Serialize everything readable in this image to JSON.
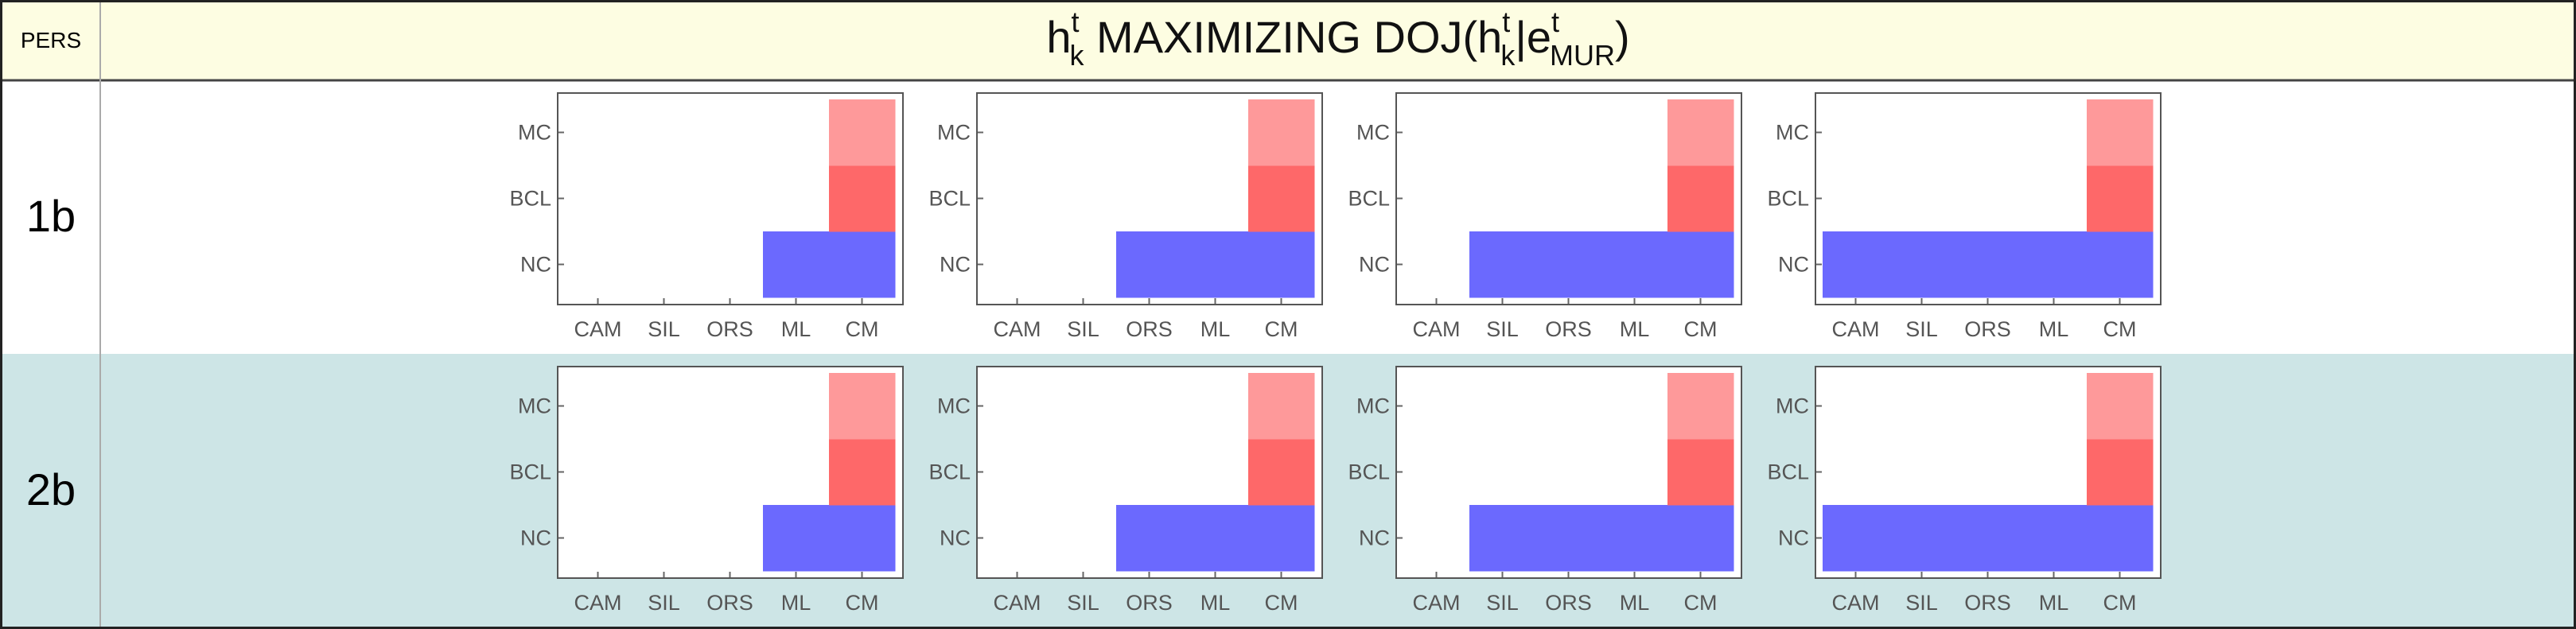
{
  "header": {
    "pers_label": "PERS",
    "title": {
      "h": "h",
      "sup1": "t",
      "sub1": "k",
      "mid": " MAXIMIZING DOJ(h",
      "sup2": "t",
      "sub2": "k",
      "bar": "|e",
      "sup3": "t",
      "sub3": "MUR",
      "close": ")"
    }
  },
  "colors": {
    "header_bg": "#fdfde2",
    "row1_bg": "#ffffff",
    "row2_bg": "#cde5e6",
    "NC": "#6b69fe",
    "BCL": "#fe6869",
    "MC": "#fe999a",
    "empty": "#ffffff",
    "axis_text": "#555555"
  },
  "chart_data": {
    "type": "heatmap",
    "x_categories": [
      "CAM",
      "SIL",
      "ORS",
      "ML",
      "CM"
    ],
    "y_categories": [
      "NC",
      "BCL",
      "MC"
    ],
    "rows": [
      {
        "label": "1b",
        "panels": [
          {
            "filled": {
              "NC": [
                "ML",
                "CM"
              ],
              "BCL": [
                "CM"
              ],
              "MC": [
                "CM"
              ]
            }
          },
          {
            "filled": {
              "NC": [
                "ORS",
                "ML",
                "CM"
              ],
              "BCL": [
                "CM"
              ],
              "MC": [
                "CM"
              ]
            }
          },
          {
            "filled": {
              "NC": [
                "SIL",
                "ORS",
                "ML",
                "CM"
              ],
              "BCL": [
                "CM"
              ],
              "MC": [
                "CM"
              ]
            }
          },
          {
            "filled": {
              "NC": [
                "CAM",
                "SIL",
                "ORS",
                "ML",
                "CM"
              ],
              "BCL": [
                "CM"
              ],
              "MC": [
                "CM"
              ]
            }
          }
        ]
      },
      {
        "label": "2b",
        "panels": [
          {
            "filled": {
              "NC": [
                "ML",
                "CM"
              ],
              "BCL": [
                "CM"
              ],
              "MC": [
                "CM"
              ]
            }
          },
          {
            "filled": {
              "NC": [
                "ORS",
                "ML",
                "CM"
              ],
              "BCL": [
                "CM"
              ],
              "MC": [
                "CM"
              ]
            }
          },
          {
            "filled": {
              "NC": [
                "SIL",
                "ORS",
                "ML",
                "CM"
              ],
              "BCL": [
                "CM"
              ],
              "MC": [
                "CM"
              ]
            }
          },
          {
            "filled": {
              "NC": [
                "CAM",
                "SIL",
                "ORS",
                "ML",
                "CM"
              ],
              "BCL": [
                "CM"
              ],
              "MC": [
                "CM"
              ]
            }
          }
        ]
      }
    ]
  }
}
